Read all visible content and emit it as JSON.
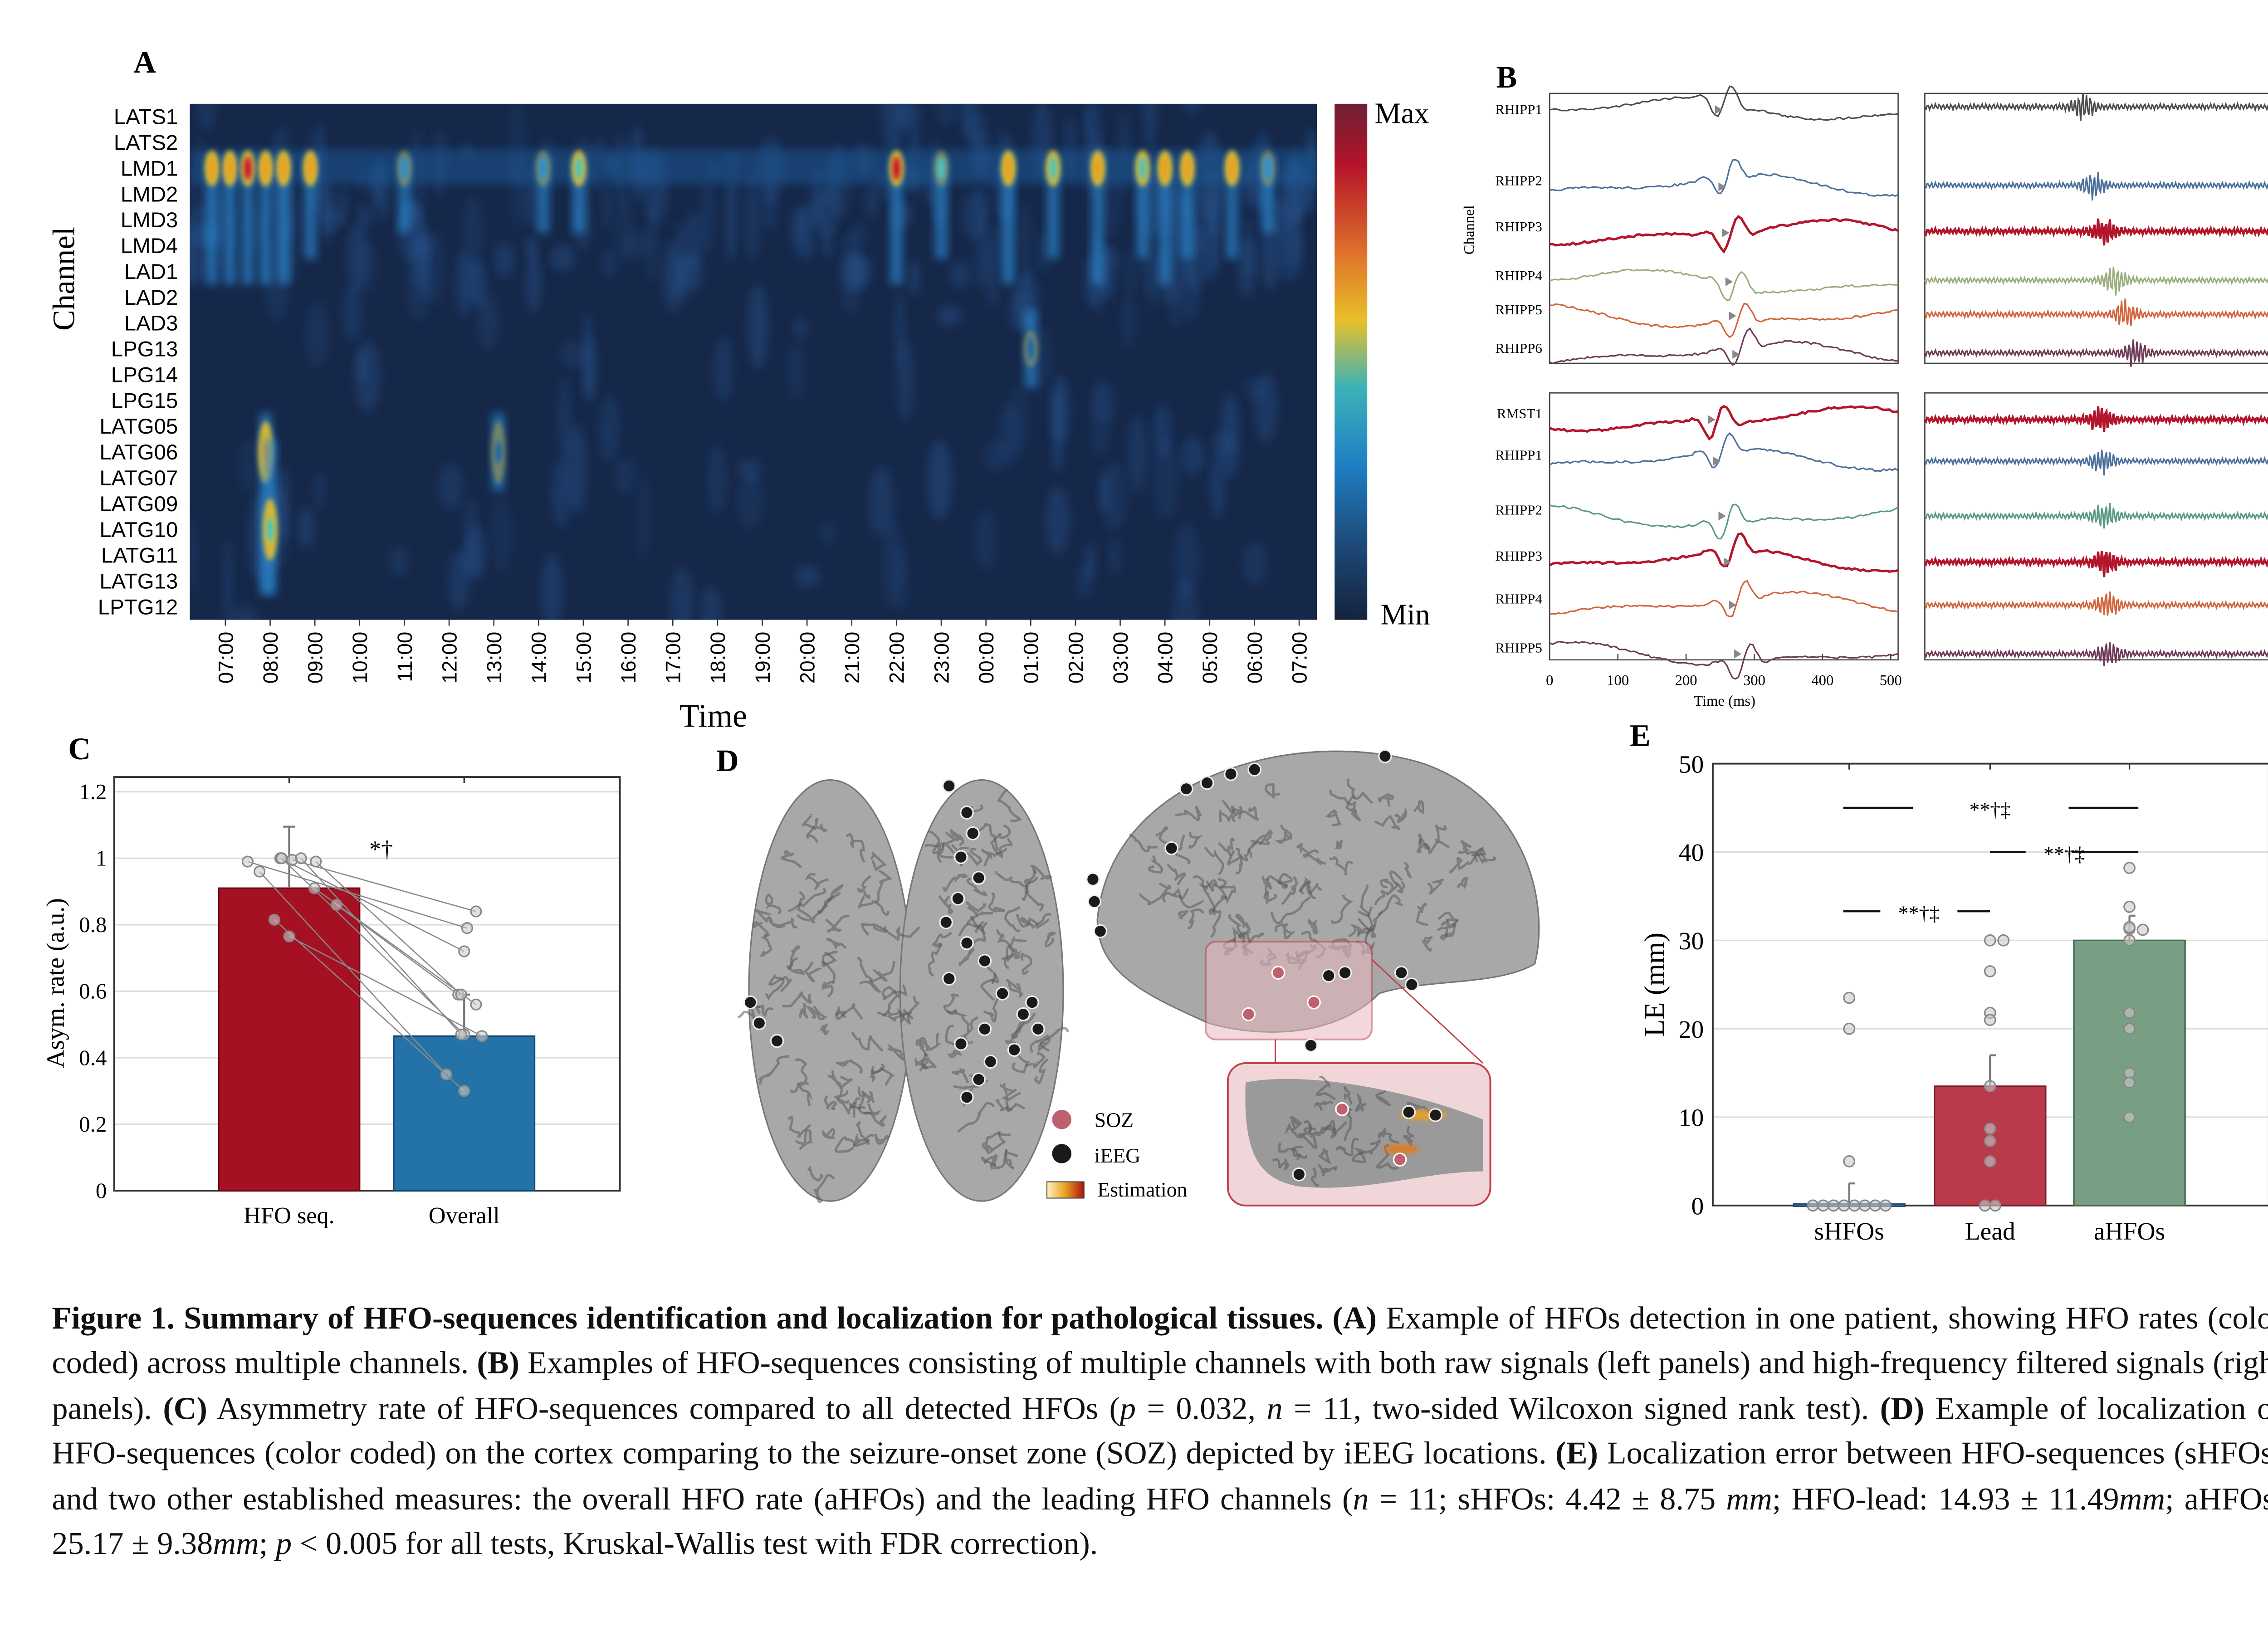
{
  "panel_labels": {
    "a": "A",
    "b": "B",
    "c": "C",
    "d": "D",
    "e": "E"
  },
  "colors": {
    "heat_bg": "#16284a",
    "bar_red": "#a51122",
    "bar_blue": "#2372a8",
    "lead_red": "#b83a4b",
    "ahfo_green": "#789f83",
    "soz": "#c0606e"
  },
  "chart_data": [
    {
      "id": "A",
      "type": "heatmap",
      "ylabel": "Channel",
      "xlabel": "Time",
      "channels": [
        "LATS1",
        "LATS2",
        "LMD1",
        "LMD2",
        "LMD3",
        "LMD4",
        "LAD1",
        "LAD2",
        "LAD3",
        "LPG13",
        "LPG14",
        "LPG15",
        "LATG05",
        "LATG06",
        "LATG07",
        "LATG09",
        "LATG10",
        "LATG11",
        "LATG13",
        "LPTG12"
      ],
      "time_ticks": [
        "07:00",
        "08:00",
        "09:00",
        "10:00",
        "11:00",
        "12:00",
        "13:00",
        "14:00",
        "15:00",
        "16:00",
        "17:00",
        "18:00",
        "19:00",
        "20:00",
        "21:00",
        "22:00",
        "23:00",
        "00:00",
        "01:00",
        "02:00",
        "03:00",
        "04:00",
        "05:00",
        "06:00",
        "07:00"
      ],
      "colorbar": {
        "max_label": "Max",
        "min_label": "Min"
      },
      "events_hours_from_first_tick": [
        {
          "t": -0.3,
          "peak": 2,
          "spread": [
            2,
            6
          ],
          "v": 0.85
        },
        {
          "t": 0.1,
          "peak": 2,
          "spread": [
            2,
            6
          ],
          "v": 0.8
        },
        {
          "t": 0.5,
          "peak": 2,
          "spread": [
            2,
            6
          ],
          "v": 0.9
        },
        {
          "t": 0.9,
          "peak": 2,
          "spread": [
            2,
            6
          ],
          "v": 0.85
        },
        {
          "t": 1.3,
          "peak": 2,
          "spread": [
            2,
            6
          ],
          "v": 0.8
        },
        {
          "t": 1.9,
          "peak": 2,
          "spread": [
            2,
            5
          ],
          "v": 0.75
        },
        {
          "t": 0.9,
          "peak": 13,
          "spread": [
            12,
            18
          ],
          "v": 0.75
        },
        {
          "t": 1.0,
          "peak": 16,
          "spread": [
            13,
            18
          ],
          "v": 0.7
        },
        {
          "t": 4.0,
          "peak": 2,
          "spread": [
            2,
            4
          ],
          "v": 0.45
        },
        {
          "t": 7.1,
          "peak": 2,
          "spread": [
            2,
            4
          ],
          "v": 0.55
        },
        {
          "t": 7.9,
          "peak": 2,
          "spread": [
            2,
            4
          ],
          "v": 0.65
        },
        {
          "t": 6.1,
          "peak": 13,
          "spread": [
            12,
            14
          ],
          "v": 0.4
        },
        {
          "t": 15.0,
          "peak": 2,
          "spread": [
            2,
            6
          ],
          "v": 0.95
        },
        {
          "t": 16.0,
          "peak": 2,
          "spread": [
            2,
            5
          ],
          "v": 0.6
        },
        {
          "t": 17.5,
          "peak": 2,
          "spread": [
            2,
            6
          ],
          "v": 0.75
        },
        {
          "t": 18.5,
          "peak": 2,
          "spread": [
            2,
            5
          ],
          "v": 0.7
        },
        {
          "t": 19.5,
          "peak": 2,
          "spread": [
            2,
            6
          ],
          "v": 0.75
        },
        {
          "t": 20.5,
          "peak": 2,
          "spread": [
            2,
            5
          ],
          "v": 0.7
        },
        {
          "t": 21.0,
          "peak": 2,
          "spread": [
            2,
            6
          ],
          "v": 0.8
        },
        {
          "t": 21.5,
          "peak": 2,
          "spread": [
            2,
            5
          ],
          "v": 0.8
        },
        {
          "t": 22.5,
          "peak": 2,
          "spread": [
            2,
            5
          ],
          "v": 0.75
        },
        {
          "t": 23.3,
          "peak": 2,
          "spread": [
            2,
            4
          ],
          "v": 0.5
        },
        {
          "t": 18.0,
          "peak": 9,
          "spread": [
            8,
            10
          ],
          "v": 0.35
        }
      ]
    },
    {
      "id": "B",
      "type": "line",
      "ylabel": "Channel",
      "xlabel": "Time (ms)",
      "x_ticks": [
        "0",
        "100",
        "200",
        "300",
        "400",
        "500"
      ],
      "xlim": [
        0,
        500
      ],
      "top_channels": [
        {
          "name": "RHIPP1",
          "color": "#4d4d4d"
        },
        {
          "name": "RHIPP2",
          "color": "#4b709c"
        },
        {
          "name": "RHIPP3",
          "color": "#b3162b"
        },
        {
          "name": "RHIPP4",
          "color": "#9aae7c"
        },
        {
          "name": "RHIPP5",
          "color": "#d2643e"
        },
        {
          "name": "RHIPP6",
          "color": "#6e3a55"
        }
      ],
      "bottom_channels": [
        {
          "name": "RMST1",
          "color": "#b3162b"
        },
        {
          "name": "RHIPP1",
          "color": "#4b709c"
        },
        {
          "name": "RHIPP2",
          "color": "#5a9a82"
        },
        {
          "name": "RHIPP3",
          "color": "#b3162b"
        },
        {
          "name": "RHIPP4",
          "color": "#d2643e"
        },
        {
          "name": "RHIPP5",
          "color": "#6e3a55"
        }
      ]
    },
    {
      "id": "C",
      "type": "bar",
      "ylabel": "Asym. rate (a.u.)",
      "categories": [
        "HFO seq.",
        "Overall"
      ],
      "values": [
        0.91,
        0.465
      ],
      "error_upper": [
        1.095,
        0.59
      ],
      "ylim": [
        0,
        1.25
      ],
      "y_ticks": [
        "0",
        "0.2",
        "0.4",
        "0.6",
        "0.8",
        "1",
        "1.2"
      ],
      "paired_points": [
        [
          0.99,
          0.79
        ],
        [
          0.96,
          0.35
        ],
        [
          1.0,
          0.72
        ],
        [
          0.995,
          0.84
        ],
        [
          1.0,
          0.47
        ],
        [
          0.91,
          0.56
        ],
        [
          0.86,
          0.59
        ],
        [
          0.815,
          0.3
        ],
        [
          0.765,
          0.465
        ],
        [
          0.99,
          0.59
        ],
        [
          1.0,
          0.47
        ]
      ],
      "significance": "*†"
    },
    {
      "id": "E",
      "type": "bar",
      "ylabel": "LE (mm)",
      "categories": [
        "sHFOs",
        "Lead",
        "aHFOs"
      ],
      "values": [
        0,
        13.5,
        30
      ],
      "error_upper": [
        2.5,
        17,
        32.8
      ],
      "ylim": [
        0,
        50
      ],
      "y_ticks": [
        "0",
        "10",
        "20",
        "30",
        "40",
        "50"
      ],
      "points": [
        [
          23.5,
          20,
          5,
          0,
          0,
          0,
          0,
          0,
          0,
          0,
          0
        ],
        [
          30,
          30,
          26.5,
          21.8,
          21,
          13.5,
          8.7,
          7.3,
          5,
          0,
          0
        ],
        [
          38.2,
          33.8,
          31.3,
          31.5,
          31.2,
          30,
          21.8,
          20,
          15,
          13.9,
          10
        ]
      ],
      "brackets": [
        {
          "from": 0,
          "to": 2,
          "y": 45,
          "label": "**†‡"
        },
        {
          "from": 1,
          "to": 2,
          "y": 40,
          "label": "**†‡"
        },
        {
          "from": 0,
          "to": 1,
          "y": 33.3,
          "label": "**†‡"
        }
      ]
    }
  ],
  "panel_d": {
    "legend": [
      {
        "label": "SOZ"
      },
      {
        "label": "iEEG"
      },
      {
        "label": "Estimation"
      }
    ]
  },
  "caption": {
    "segments": [
      {
        "text": "Figure 1. Summary of HFO-sequences identification and localization for pathological tissues. (A)",
        "style": "b"
      },
      {
        "text": " Example of HFOs detection in one patient, showing HFO rates (color coded) across multiple channels.  ",
        "style": ""
      },
      {
        "text": "(B)",
        "style": "b"
      },
      {
        "text": " Examples of HFO-sequences consisting of multiple channels with both raw signals (left panels) and high-frequency filtered signals (right panels). ",
        "style": ""
      },
      {
        "text": "(C)",
        "style": "b"
      },
      {
        "text": " Asymmetry rate  of HFO-sequences compared to all detected HFOs (",
        "style": ""
      },
      {
        "text": "p",
        "style": "i"
      },
      {
        "text": " = 0.032, ",
        "style": ""
      },
      {
        "text": "n",
        "style": "i"
      },
      {
        "text": " = 11, two-sided Wilcoxon signed rank test). ",
        "style": ""
      },
      {
        "text": "(D)",
        "style": "b"
      },
      {
        "text": " Example of localization of HFO-sequences (color coded) on the cortex comparing to the seizure-onset zone (SOZ) depicted by iEEG locations. ",
        "style": ""
      },
      {
        "text": "(E)",
        "style": "b"
      },
      {
        "text": " Localization error between HFO-sequences (sHFOs) and  two other established measures: the overall HFO rate (aHFOs) and the leading HFO channels (",
        "style": ""
      },
      {
        "text": "n",
        "style": "i"
      },
      {
        "text": " = 11; sHFOs: 4.42 ± 8.75 ",
        "style": ""
      },
      {
        "text": "mm",
        "style": "i"
      },
      {
        "text": "; HFO-lead: 14.93 ± 11.49",
        "style": ""
      },
      {
        "text": "mm",
        "style": "i"
      },
      {
        "text": "; aHFOs: 25.17 ± 9.38",
        "style": ""
      },
      {
        "text": "mm",
        "style": "i"
      },
      {
        "text": "; ",
        "style": ""
      },
      {
        "text": "p",
        "style": "i"
      },
      {
        "text": " < 0.005 for all tests, Kruskal-Wallis test with FDR correction).",
        "style": ""
      }
    ]
  }
}
